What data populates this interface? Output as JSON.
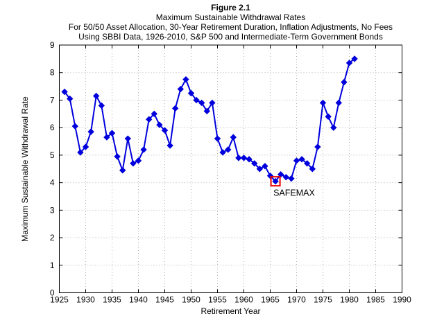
{
  "figure": {
    "title": "Figure 2.1",
    "subtitle1": "Maximum Sustainable Withdrawal Rates",
    "subtitle2": "For 50/50 Asset Allocation, 30-Year Retirement Duration, Inflation Adjustments, No Fees",
    "subtitle3": "Using SBBI Data, 1926-2010, S&P 500 and Intermediate-Term Government Bonds"
  },
  "chart_data": {
    "type": "line",
    "title": "Maximum Sustainable Withdrawal Rates",
    "xlabel": "Retirement Year",
    "ylabel": "Maximum Sustainable Withdrawal Rate",
    "xlim": [
      1925,
      1990
    ],
    "ylim": [
      0,
      9
    ],
    "xticks": [
      1925,
      1930,
      1935,
      1940,
      1945,
      1950,
      1955,
      1960,
      1965,
      1970,
      1975,
      1980,
      1985,
      1990
    ],
    "yticks": [
      0,
      1,
      2,
      3,
      4,
      5,
      6,
      7,
      8,
      9
    ],
    "grid": true,
    "grid_style": "dotted",
    "line_color": "#0000DD",
    "marker": "diamond",
    "series": [
      {
        "name": "Maximum Sustainable Withdrawal Rate",
        "x": [
          1926,
          1927,
          1928,
          1929,
          1930,
          1931,
          1932,
          1933,
          1934,
          1935,
          1936,
          1937,
          1938,
          1939,
          1940,
          1941,
          1942,
          1943,
          1944,
          1945,
          1946,
          1947,
          1948,
          1949,
          1950,
          1951,
          1952,
          1953,
          1954,
          1955,
          1956,
          1957,
          1958,
          1959,
          1960,
          1961,
          1962,
          1963,
          1964,
          1965,
          1966,
          1967,
          1968,
          1969,
          1970,
          1971,
          1972,
          1973,
          1974,
          1975,
          1976,
          1977,
          1978,
          1979,
          1980,
          1981
        ],
        "y": [
          7.3,
          7.05,
          6.05,
          5.1,
          5.3,
          5.85,
          7.15,
          6.8,
          5.65,
          5.8,
          4.95,
          4.45,
          5.6,
          4.7,
          4.8,
          5.2,
          6.3,
          6.5,
          6.1,
          5.9,
          5.35,
          6.7,
          7.4,
          7.75,
          7.25,
          7.0,
          6.9,
          6.6,
          6.9,
          5.6,
          5.1,
          5.2,
          5.65,
          4.9,
          4.9,
          4.85,
          4.7,
          4.5,
          4.6,
          4.25,
          4.05,
          4.3,
          4.2,
          4.15,
          4.8,
          4.85,
          4.7,
          4.5,
          5.3,
          6.9,
          6.4,
          6.0,
          6.9,
          7.65,
          8.35,
          8.5
        ]
      }
    ],
    "annotation": {
      "label": "SAFEMAX",
      "year": 1966,
      "value": 4.05,
      "marker_color": "#EE0000"
    }
  },
  "style": {
    "grid_color": "#b0b0b0",
    "axis_color": "#000000",
    "background": "#ffffff"
  }
}
